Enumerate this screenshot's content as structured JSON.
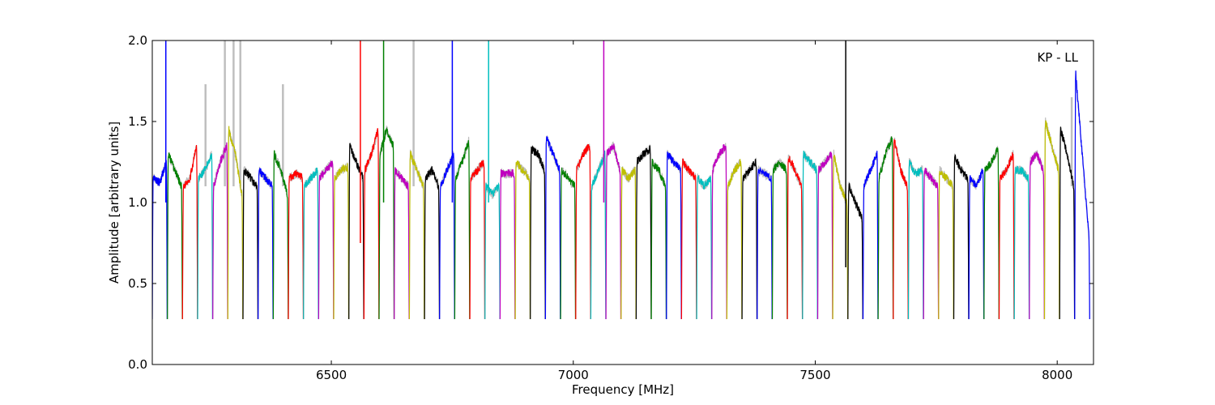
{
  "chart_data": {
    "type": "line",
    "title": "",
    "annotation": "KP - LL",
    "xlabel": "Frequency [MHz]",
    "ylabel": "Amplitude [arbitrary units]",
    "xlim": [
      6130,
      8075
    ],
    "ylim": [
      0.0,
      2.0
    ],
    "xticks": [
      6500,
      7000,
      7500,
      8000
    ],
    "yticks": [
      0.0,
      0.5,
      1.0,
      1.5,
      2.0
    ],
    "xtick_labels": [
      "6500",
      "7000",
      "7500",
      "8000"
    ],
    "ytick_labels": [
      "0.0",
      "0.5",
      "1.0",
      "1.5",
      "2.0"
    ],
    "grid": false,
    "legend": "none",
    "raw_color": "#bfbfbf",
    "colors": [
      "#0000ff",
      "#008000",
      "#ff0000",
      "#00bfbf",
      "#bf00bf",
      "#bfbf00",
      "#000000"
    ],
    "channel_width_mhz": 31.25,
    "series": [
      {
        "color": "blue",
        "start": 6130,
        "levels": [
          1.15,
          1.12,
          1.25
        ]
      },
      {
        "color": "green",
        "start": 6161.25,
        "levels": [
          1.3,
          1.2,
          1.1
        ]
      },
      {
        "color": "red",
        "start": 6192.5,
        "levels": [
          1.1,
          1.15,
          1.35
        ]
      },
      {
        "color": "cyan",
        "start": 6223.75,
        "levels": [
          1.15,
          1.2,
          1.3
        ]
      },
      {
        "color": "magenta",
        "start": 6255,
        "levels": [
          1.1,
          1.25,
          1.35
        ]
      },
      {
        "color": "yellow",
        "start": 6286.25,
        "levels": [
          1.45,
          1.3,
          1.05
        ]
      },
      {
        "color": "black",
        "start": 6317.5,
        "levels": [
          1.2,
          1.15,
          1.1
        ]
      },
      {
        "color": "blue",
        "start": 6348.75,
        "levels": [
          1.2,
          1.15,
          1.1
        ]
      },
      {
        "color": "green",
        "start": 6380,
        "levels": [
          1.3,
          1.2,
          1.05
        ]
      },
      {
        "color": "red",
        "start": 6411.25,
        "levels": [
          1.15,
          1.18,
          1.15
        ]
      },
      {
        "color": "cyan",
        "start": 6442.5,
        "levels": [
          1.1,
          1.15,
          1.2
        ]
      },
      {
        "color": "magenta",
        "start": 6473.75,
        "levels": [
          1.15,
          1.2,
          1.25
        ]
      },
      {
        "color": "yellow",
        "start": 6505,
        "levels": [
          1.15,
          1.2,
          1.22
        ]
      },
      {
        "color": "black",
        "start": 6536.25,
        "levels": [
          1.35,
          1.25,
          1.15
        ]
      },
      {
        "color": "red",
        "start": 6567.5,
        "levels": [
          1.2,
          1.3,
          1.45
        ]
      },
      {
        "color": "green",
        "start": 6598.75,
        "levels": [
          1.3,
          1.45,
          1.35
        ]
      },
      {
        "color": "magenta",
        "start": 6630,
        "levels": [
          1.2,
          1.15,
          1.1
        ]
      },
      {
        "color": "yellow",
        "start": 6661.25,
        "levels": [
          1.3,
          1.2,
          1.1
        ]
      },
      {
        "color": "black",
        "start": 6692.5,
        "levels": [
          1.15,
          1.2,
          1.1
        ]
      },
      {
        "color": "blue",
        "start": 6723.75,
        "levels": [
          1.1,
          1.2,
          1.3
        ]
      },
      {
        "color": "green",
        "start": 6755,
        "levels": [
          1.15,
          1.25,
          1.38
        ]
      },
      {
        "color": "red",
        "start": 6786.25,
        "levels": [
          1.15,
          1.2,
          1.25
        ]
      },
      {
        "color": "cyan",
        "start": 6817.5,
        "levels": [
          1.1,
          1.05,
          1.1
        ]
      },
      {
        "color": "magenta",
        "start": 6848.75,
        "levels": [
          1.18,
          1.18,
          1.18
        ]
      },
      {
        "color": "yellow",
        "start": 6880,
        "levels": [
          1.25,
          1.2,
          1.15
        ]
      },
      {
        "color": "black",
        "start": 6911.25,
        "levels": [
          1.33,
          1.3,
          1.2
        ]
      },
      {
        "color": "blue",
        "start": 6942.5,
        "levels": [
          1.4,
          1.3,
          1.2
        ]
      },
      {
        "color": "green",
        "start": 6973.75,
        "levels": [
          1.2,
          1.15,
          1.1
        ]
      },
      {
        "color": "red",
        "start": 7005,
        "levels": [
          1.2,
          1.3,
          1.35
        ]
      },
      {
        "color": "cyan",
        "start": 7036.25,
        "levels": [
          1.1,
          1.2,
          1.3
        ]
      },
      {
        "color": "magenta",
        "start": 7067.5,
        "levels": [
          1.3,
          1.35,
          1.2
        ]
      },
      {
        "color": "yellow",
        "start": 7098.75,
        "levels": [
          1.2,
          1.15,
          1.2
        ]
      },
      {
        "color": "black",
        "start": 7130,
        "levels": [
          1.25,
          1.3,
          1.33
        ]
      },
      {
        "color": "green",
        "start": 7161.25,
        "levels": [
          1.25,
          1.2,
          1.1
        ]
      },
      {
        "color": "blue",
        "start": 7192.5,
        "levels": [
          1.3,
          1.25,
          1.2
        ]
      },
      {
        "color": "red",
        "start": 7223.75,
        "levels": [
          1.25,
          1.2,
          1.15
        ]
      },
      {
        "color": "cyan",
        "start": 7255,
        "levels": [
          1.15,
          1.1,
          1.15
        ]
      },
      {
        "color": "magenta",
        "start": 7286.25,
        "levels": [
          1.2,
          1.3,
          1.35
        ]
      },
      {
        "color": "yellow",
        "start": 7317.5,
        "levels": [
          1.1,
          1.2,
          1.25
        ]
      },
      {
        "color": "black",
        "start": 7348.75,
        "levels": [
          1.15,
          1.2,
          1.25
        ]
      },
      {
        "color": "blue",
        "start": 7380,
        "levels": [
          1.2,
          1.18,
          1.15
        ]
      },
      {
        "color": "green",
        "start": 7411.25,
        "levels": [
          1.2,
          1.25,
          1.2
        ]
      },
      {
        "color": "red",
        "start": 7442.5,
        "levels": [
          1.28,
          1.2,
          1.1
        ]
      },
      {
        "color": "cyan",
        "start": 7473.75,
        "levels": [
          1.3,
          1.25,
          1.2
        ]
      },
      {
        "color": "magenta",
        "start": 7505,
        "levels": [
          1.2,
          1.25,
          1.3
        ]
      },
      {
        "color": "yellow",
        "start": 7536.25,
        "levels": [
          1.3,
          1.1,
          1.0
        ]
      },
      {
        "color": "black",
        "start": 7567.5,
        "levels": [
          1.1,
          1.0,
          0.9
        ]
      },
      {
        "color": "blue",
        "start": 7598.75,
        "levels": [
          1.1,
          1.2,
          1.3
        ]
      },
      {
        "color": "green",
        "start": 7630,
        "levels": [
          1.15,
          1.3,
          1.4
        ]
      },
      {
        "color": "red",
        "start": 7661.25,
        "levels": [
          1.4,
          1.2,
          1.1
        ]
      },
      {
        "color": "cyan",
        "start": 7692.5,
        "levels": [
          1.25,
          1.18,
          1.2
        ]
      },
      {
        "color": "magenta",
        "start": 7723.75,
        "levels": [
          1.2,
          1.15,
          1.1
        ]
      },
      {
        "color": "yellow",
        "start": 7755,
        "levels": [
          1.2,
          1.15,
          1.1
        ]
      },
      {
        "color": "black",
        "start": 7786.25,
        "levels": [
          1.28,
          1.2,
          1.15
        ]
      },
      {
        "color": "blue",
        "start": 7817.5,
        "levels": [
          1.15,
          1.1,
          1.2
        ]
      },
      {
        "color": "green",
        "start": 7848.75,
        "levels": [
          1.2,
          1.25,
          1.33
        ]
      },
      {
        "color": "red",
        "start": 7880,
        "levels": [
          1.15,
          1.2,
          1.3
        ]
      },
      {
        "color": "cyan",
        "start": 7911.25,
        "levels": [
          1.2,
          1.2,
          1.15
        ]
      },
      {
        "color": "magenta",
        "start": 7942.5,
        "levels": [
          1.25,
          1.3,
          1.2
        ]
      },
      {
        "color": "yellow",
        "start": 7973.75,
        "levels": [
          1.5,
          1.35,
          1.2
        ]
      },
      {
        "color": "black",
        "start": 8005,
        "levels": [
          1.45,
          1.3,
          1.1
        ]
      },
      {
        "color": "blue",
        "start": 8036.25,
        "levels": [
          1.8,
          1.3,
          0.8
        ]
      }
    ],
    "spikes": [
      {
        "x": 6158,
        "y_from": 1.0,
        "y_to": 2.0,
        "color": "blue"
      },
      {
        "x": 6560,
        "y_from": 0.75,
        "y_to": 2.0,
        "color": "red"
      },
      {
        "x": 6608,
        "y_from": 1.0,
        "y_to": 2.0,
        "color": "green"
      },
      {
        "x": 6750,
        "y_from": 1.0,
        "y_to": 2.0,
        "color": "blue"
      },
      {
        "x": 6825,
        "y_from": 1.0,
        "y_to": 2.0,
        "color": "cyan"
      },
      {
        "x": 7063,
        "y_from": 1.0,
        "y_to": 2.0,
        "color": "magenta"
      },
      {
        "x": 7563,
        "y_from": 0.6,
        "y_to": 2.0,
        "color": "black"
      }
    ],
    "raw_peaks": [
      {
        "x": 6240,
        "y": 1.73
      },
      {
        "x": 6280,
        "y": 2.0
      },
      {
        "x": 6298,
        "y": 2.0
      },
      {
        "x": 6312,
        "y": 2.0
      },
      {
        "x": 6400,
        "y": 1.73
      },
      {
        "x": 6670,
        "y": 2.0
      },
      {
        "x": 8030,
        "y": 1.65
      }
    ]
  }
}
